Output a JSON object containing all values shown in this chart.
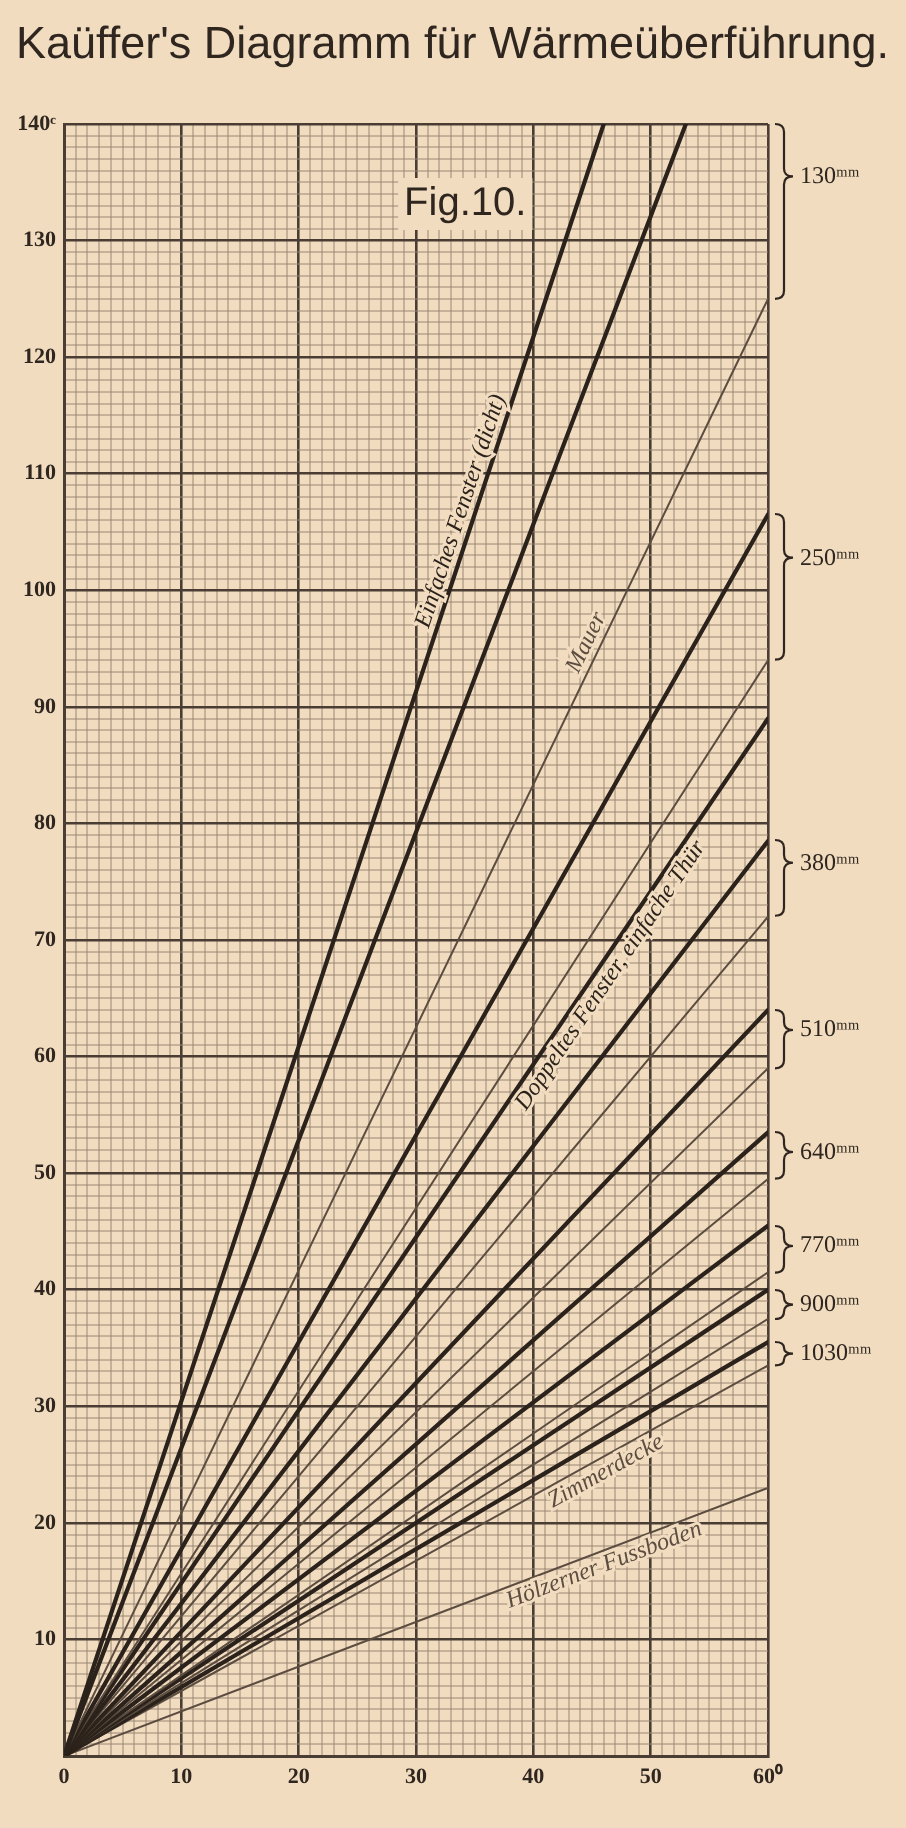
{
  "chart_data": {
    "type": "line",
    "title": "Kaüffer's Diagramm für Wärmeüberführung.",
    "series": [
      {
        "name": "Einfaches Fenster (dicht)",
        "color": "#2b221b",
        "x": [
          0,
          46
        ],
        "values": [
          0,
          140
        ]
      },
      {
        "color": "#2b221b",
        "x": [
          0,
          53
        ],
        "values": [
          0,
          140
        ]
      },
      {
        "name": "Mauer",
        "color": "#5c4d40",
        "x": [
          0,
          60
        ],
        "values": [
          0,
          125
        ]
      },
      {
        "color": "#2b221b",
        "x": [
          0,
          60
        ],
        "values": [
          0,
          106.5
        ]
      },
      {
        "color": "#5c4d40",
        "x": [
          0,
          60
        ],
        "values": [
          0,
          94
        ]
      },
      {
        "name": "Doppeltes Fenster, einfache Thür",
        "color": "#2b221b",
        "x": [
          0,
          60
        ],
        "values": [
          0,
          89
        ]
      },
      {
        "color": "#2b221b",
        "x": [
          0,
          60
        ],
        "values": [
          0,
          78.5
        ]
      },
      {
        "color": "#5c4d40",
        "x": [
          0,
          60
        ],
        "values": [
          0,
          72
        ]
      },
      {
        "color": "#2b221b",
        "x": [
          0,
          60
        ],
        "values": [
          0,
          64
        ]
      },
      {
        "color": "#5c4d40",
        "x": [
          0,
          60
        ],
        "values": [
          0,
          59
        ]
      },
      {
        "color": "#2b221b",
        "x": [
          0,
          60
        ],
        "values": [
          0,
          53.5
        ]
      },
      {
        "color": "#5c4d40",
        "x": [
          0,
          60
        ],
        "values": [
          0,
          49.5
        ]
      },
      {
        "color": "#2b221b",
        "x": [
          0,
          60
        ],
        "values": [
          0,
          45.5
        ]
      },
      {
        "color": "#5c4d40",
        "x": [
          0,
          60
        ],
        "values": [
          0,
          41.5
        ]
      },
      {
        "color": "#2b221b",
        "x": [
          0,
          60
        ],
        "values": [
          0,
          40
        ]
      },
      {
        "color": "#5c4d40",
        "x": [
          0,
          60
        ],
        "values": [
          0,
          37.5
        ]
      },
      {
        "color": "#2b221b",
        "x": [
          0,
          60
        ],
        "values": [
          0,
          35.5
        ]
      },
      {
        "name": "Zimmerdecke",
        "color": "#5c4d40",
        "x": [
          0,
          60
        ],
        "values": [
          0,
          33.5
        ]
      },
      {
        "name": "Hölzerner Fussboden",
        "color": "#5c4d40",
        "x": [
          0,
          60
        ],
        "values": [
          0,
          23
        ]
      }
    ],
    "xlim": [
      0,
      60
    ],
    "ylim": [
      0,
      140
    ],
    "xticks": [
      0,
      {
        "value": 1,
        "label": null
      },
      {
        "value": 2,
        "label": null
      },
      {
        "value": 3,
        "label": null
      },
      {
        "value": 4,
        "label": null
      },
      {
        "value": 5,
        "label": null
      },
      {
        "value": 6,
        "label": null
      },
      {
        "value": 7,
        "label": null
      },
      {
        "value": 8,
        "label": null
      },
      {
        "value": 9,
        "label": null
      },
      10,
      {
        "value": 11,
        "label": null
      },
      {
        "value": 12,
        "label": null
      },
      {
        "value": 13,
        "label": null
      },
      {
        "value": 14,
        "label": null
      },
      {
        "value": 15,
        "label": null
      },
      {
        "value": 16,
        "label": null
      },
      {
        "value": 17,
        "label": null
      },
      {
        "value": 18,
        "label": null
      },
      {
        "value": 19,
        "label": null
      },
      20,
      {
        "value": 21,
        "label": null
      },
      {
        "value": 22,
        "label": null
      },
      {
        "value": 23,
        "label": null
      },
      {
        "value": 24,
        "label": null
      },
      {
        "value": 25,
        "label": null
      },
      {
        "value": 26,
        "label": null
      },
      {
        "value": 27,
        "label": null
      },
      {
        "value": 28,
        "label": null
      },
      {
        "value": 29,
        "label": null
      },
      30,
      {
        "value": 31,
        "label": null
      },
      {
        "value": 32,
        "label": null
      },
      {
        "value": 33,
        "label": null
      },
      {
        "value": 34,
        "label": null
      },
      {
        "value": 35,
        "label": null
      },
      {
        "value": 36,
        "label": null
      },
      {
        "value": 37,
        "label": null
      },
      {
        "value": 38,
        "label": null
      },
      {
        "value": 39,
        "label": null
      },
      40,
      {
        "value": 41,
        "label": null
      },
      {
        "value": 42,
        "label": null
      },
      {
        "value": 43,
        "label": null
      },
      {
        "value": 44,
        "label": null
      },
      {
        "value": 45,
        "label": null
      },
      {
        "value": 46,
        "label": null
      },
      {
        "value": 47,
        "label": null
      },
      {
        "value": 48,
        "label": null
      },
      {
        "value": 49,
        "label": null
      },
      50,
      {
        "value": 51,
        "label": null
      },
      {
        "value": 52,
        "label": null
      },
      {
        "value": 53,
        "label": null
      },
      {
        "value": 54,
        "label": null
      },
      {
        "value": 55,
        "label": null
      },
      {
        "value": 56,
        "label": null
      },
      {
        "value": 57,
        "label": null
      },
      {
        "value": 58,
        "label": null
      },
      {
        "value": 59,
        "label": null
      },
      {
        "value": 60,
        "label": "60⁰"
      }
    ],
    "yticks": [
      {
        "value": 0,
        "label": null
      },
      {
        "value": 1,
        "label": null
      },
      {
        "value": 2,
        "label": null
      },
      {
        "value": 3,
        "label": null
      },
      {
        "value": 4,
        "label": null
      },
      {
        "value": 5,
        "label": null
      },
      {
        "value": 6,
        "label": null
      },
      {
        "value": 7,
        "label": null
      },
      {
        "value": 8,
        "label": null
      },
      {
        "value": 9,
        "label": null
      },
      10,
      {
        "value": 11,
        "label": null
      },
      {
        "value": 12,
        "label": null
      },
      {
        "value": 13,
        "label": null
      },
      {
        "value": 14,
        "label": null
      },
      {
        "value": 15,
        "label": null
      },
      {
        "value": 16,
        "label": null
      },
      {
        "value": 17,
        "label": null
      },
      {
        "value": 18,
        "label": null
      },
      {
        "value": 19,
        "label": null
      },
      20,
      {
        "value": 21,
        "label": null
      },
      {
        "value": 22,
        "label": null
      },
      {
        "value": 23,
        "label": null
      },
      {
        "value": 24,
        "label": null
      },
      {
        "value": 25,
        "label": null
      },
      {
        "value": 26,
        "label": null
      },
      {
        "value": 27,
        "label": null
      },
      {
        "value": 28,
        "label": null
      },
      {
        "value": 29,
        "label": null
      },
      30,
      {
        "value": 31,
        "label": null
      },
      {
        "value": 32,
        "label": null
      },
      {
        "value": 33,
        "label": null
      },
      {
        "value": 34,
        "label": null
      },
      {
        "value": 35,
        "label": null
      },
      {
        "value": 36,
        "label": null
      },
      {
        "value": 37,
        "label": null
      },
      {
        "value": 38,
        "label": null
      },
      {
        "value": 39,
        "label": null
      },
      40,
      {
        "value": 41,
        "label": null
      },
      {
        "value": 42,
        "label": null
      },
      {
        "value": 43,
        "label": null
      },
      {
        "value": 44,
        "label": null
      },
      {
        "value": 45,
        "label": null
      },
      {
        "value": 46,
        "label": null
      },
      {
        "value": 47,
        "label": null
      },
      {
        "value": 48,
        "label": null
      },
      {
        "value": 49,
        "label": null
      },
      50,
      {
        "value": 51,
        "label": null
      },
      {
        "value": 52,
        "label": null
      },
      {
        "value": 53,
        "label": null
      },
      {
        "value": 54,
        "label": null
      },
      {
        "value": 55,
        "label": null
      },
      {
        "value": 56,
        "label": null
      },
      {
        "value": 57,
        "label": null
      },
      {
        "value": 58,
        "label": null
      },
      {
        "value": 59,
        "label": null
      },
      60,
      {
        "value": 61,
        "label": null
      },
      {
        "value": 62,
        "label": null
      },
      {
        "value": 63,
        "label": null
      },
      {
        "value": 64,
        "label": null
      },
      {
        "value": 65,
        "label": null
      },
      {
        "value": 66,
        "label": null
      },
      {
        "value": 67,
        "label": null
      },
      {
        "value": 68,
        "label": null
      },
      {
        "value": 69,
        "label": null
      },
      70,
      {
        "value": 71,
        "label": null
      },
      {
        "value": 72,
        "label": null
      },
      {
        "value": 73,
        "label": null
      },
      {
        "value": 74,
        "label": null
      },
      {
        "value": 75,
        "label": null
      },
      {
        "value": 76,
        "label": null
      },
      {
        "value": 77,
        "label": null
      },
      {
        "value": 78,
        "label": null
      },
      {
        "value": 79,
        "label": null
      },
      80,
      {
        "value": 81,
        "label": null
      },
      {
        "value": 82,
        "label": null
      },
      {
        "value": 83,
        "label": null
      },
      {
        "value": 84,
        "label": null
      },
      {
        "value": 85,
        "label": null
      },
      {
        "value": 86,
        "label": null
      },
      {
        "value": 87,
        "label": null
      },
      {
        "value": 88,
        "label": null
      },
      {
        "value": 89,
        "label": null
      },
      90,
      {
        "value": 91,
        "label": null
      },
      {
        "value": 92,
        "label": null
      },
      {
        "value": 93,
        "label": null
      },
      {
        "value": 94,
        "label": null
      },
      {
        "value": 95,
        "label": null
      },
      {
        "value": 96,
        "label": null
      },
      {
        "value": 97,
        "label": null
      },
      {
        "value": 98,
        "label": null
      },
      {
        "value": 99,
        "label": null
      },
      100,
      {
        "value": 101,
        "label": null
      },
      {
        "value": 102,
        "label": null
      },
      {
        "value": 103,
        "label": null
      },
      {
        "value": 104,
        "label": null
      },
      {
        "value": 105,
        "label": null
      },
      {
        "value": 106,
        "label": null
      },
      {
        "value": 107,
        "label": null
      },
      {
        "value": 108,
        "label": null
      },
      {
        "value": 109,
        "label": null
      },
      110,
      {
        "value": 111,
        "label": null
      },
      {
        "value": 112,
        "label": null
      },
      {
        "value": 113,
        "label": null
      },
      {
        "value": 114,
        "label": null
      },
      {
        "value": 115,
        "label": null
      },
      {
        "value": 116,
        "label": null
      },
      {
        "value": 117,
        "label": null
      },
      {
        "value": 118,
        "label": null
      },
      {
        "value": 119,
        "label": null
      },
      120,
      {
        "value": 121,
        "label": null
      },
      {
        "value": 122,
        "label": null
      },
      {
        "value": 123,
        "label": null
      },
      {
        "value": 124,
        "label": null
      },
      {
        "value": 125,
        "label": null
      },
      {
        "value": 126,
        "label": null
      },
      {
        "value": 127,
        "label": null
      },
      {
        "value": 128,
        "label": null
      },
      {
        "value": 129,
        "label": null
      },
      130,
      {
        "value": 131,
        "label": null
      },
      {
        "value": 132,
        "label": null
      },
      {
        "value": 133,
        "label": null
      },
      {
        "value": 134,
        "label": null
      },
      {
        "value": 135,
        "label": null
      },
      {
        "value": 136,
        "label": null
      },
      {
        "value": 137,
        "label": null
      },
      {
        "value": 138,
        "label": null
      },
      {
        "value": 139,
        "label": null
      },
      {
        "value": 140,
        "label": "140ᶜ"
      }
    ],
    "grid": true,
    "annotations": [
      "Fig.10.",
      "130ᵐᵐ",
      "250ᵐᵐ",
      "380ᵐᵐ",
      "510ᵐᵐ",
      "640ᵐᵐ",
      "770ᵐᵐ",
      "900ᵐᵐ",
      "1030ᵐᵐ"
    ]
  }
}
